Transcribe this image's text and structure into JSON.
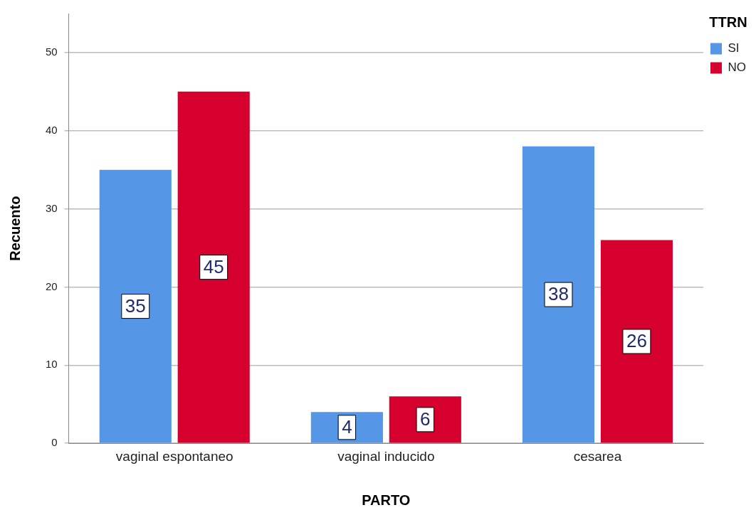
{
  "chart_data": {
    "type": "bar",
    "xlabel": "PARTO",
    "ylabel": "Recuento",
    "legend_title": "TTRN",
    "categories": [
      "vaginal espontaneo",
      "vaginal inducido",
      "cesarea"
    ],
    "series": [
      {
        "name": "SI",
        "color": "#5596e6",
        "values": [
          35,
          4,
          38
        ]
      },
      {
        "name": "NO",
        "color": "#d6002f",
        "values": [
          45,
          6,
          26
        ]
      }
    ],
    "ylim": [
      0,
      55
    ],
    "yticks": [
      0,
      10,
      20,
      30,
      40,
      50
    ],
    "grid": "y",
    "legend": "top right",
    "data_labels": true
  }
}
